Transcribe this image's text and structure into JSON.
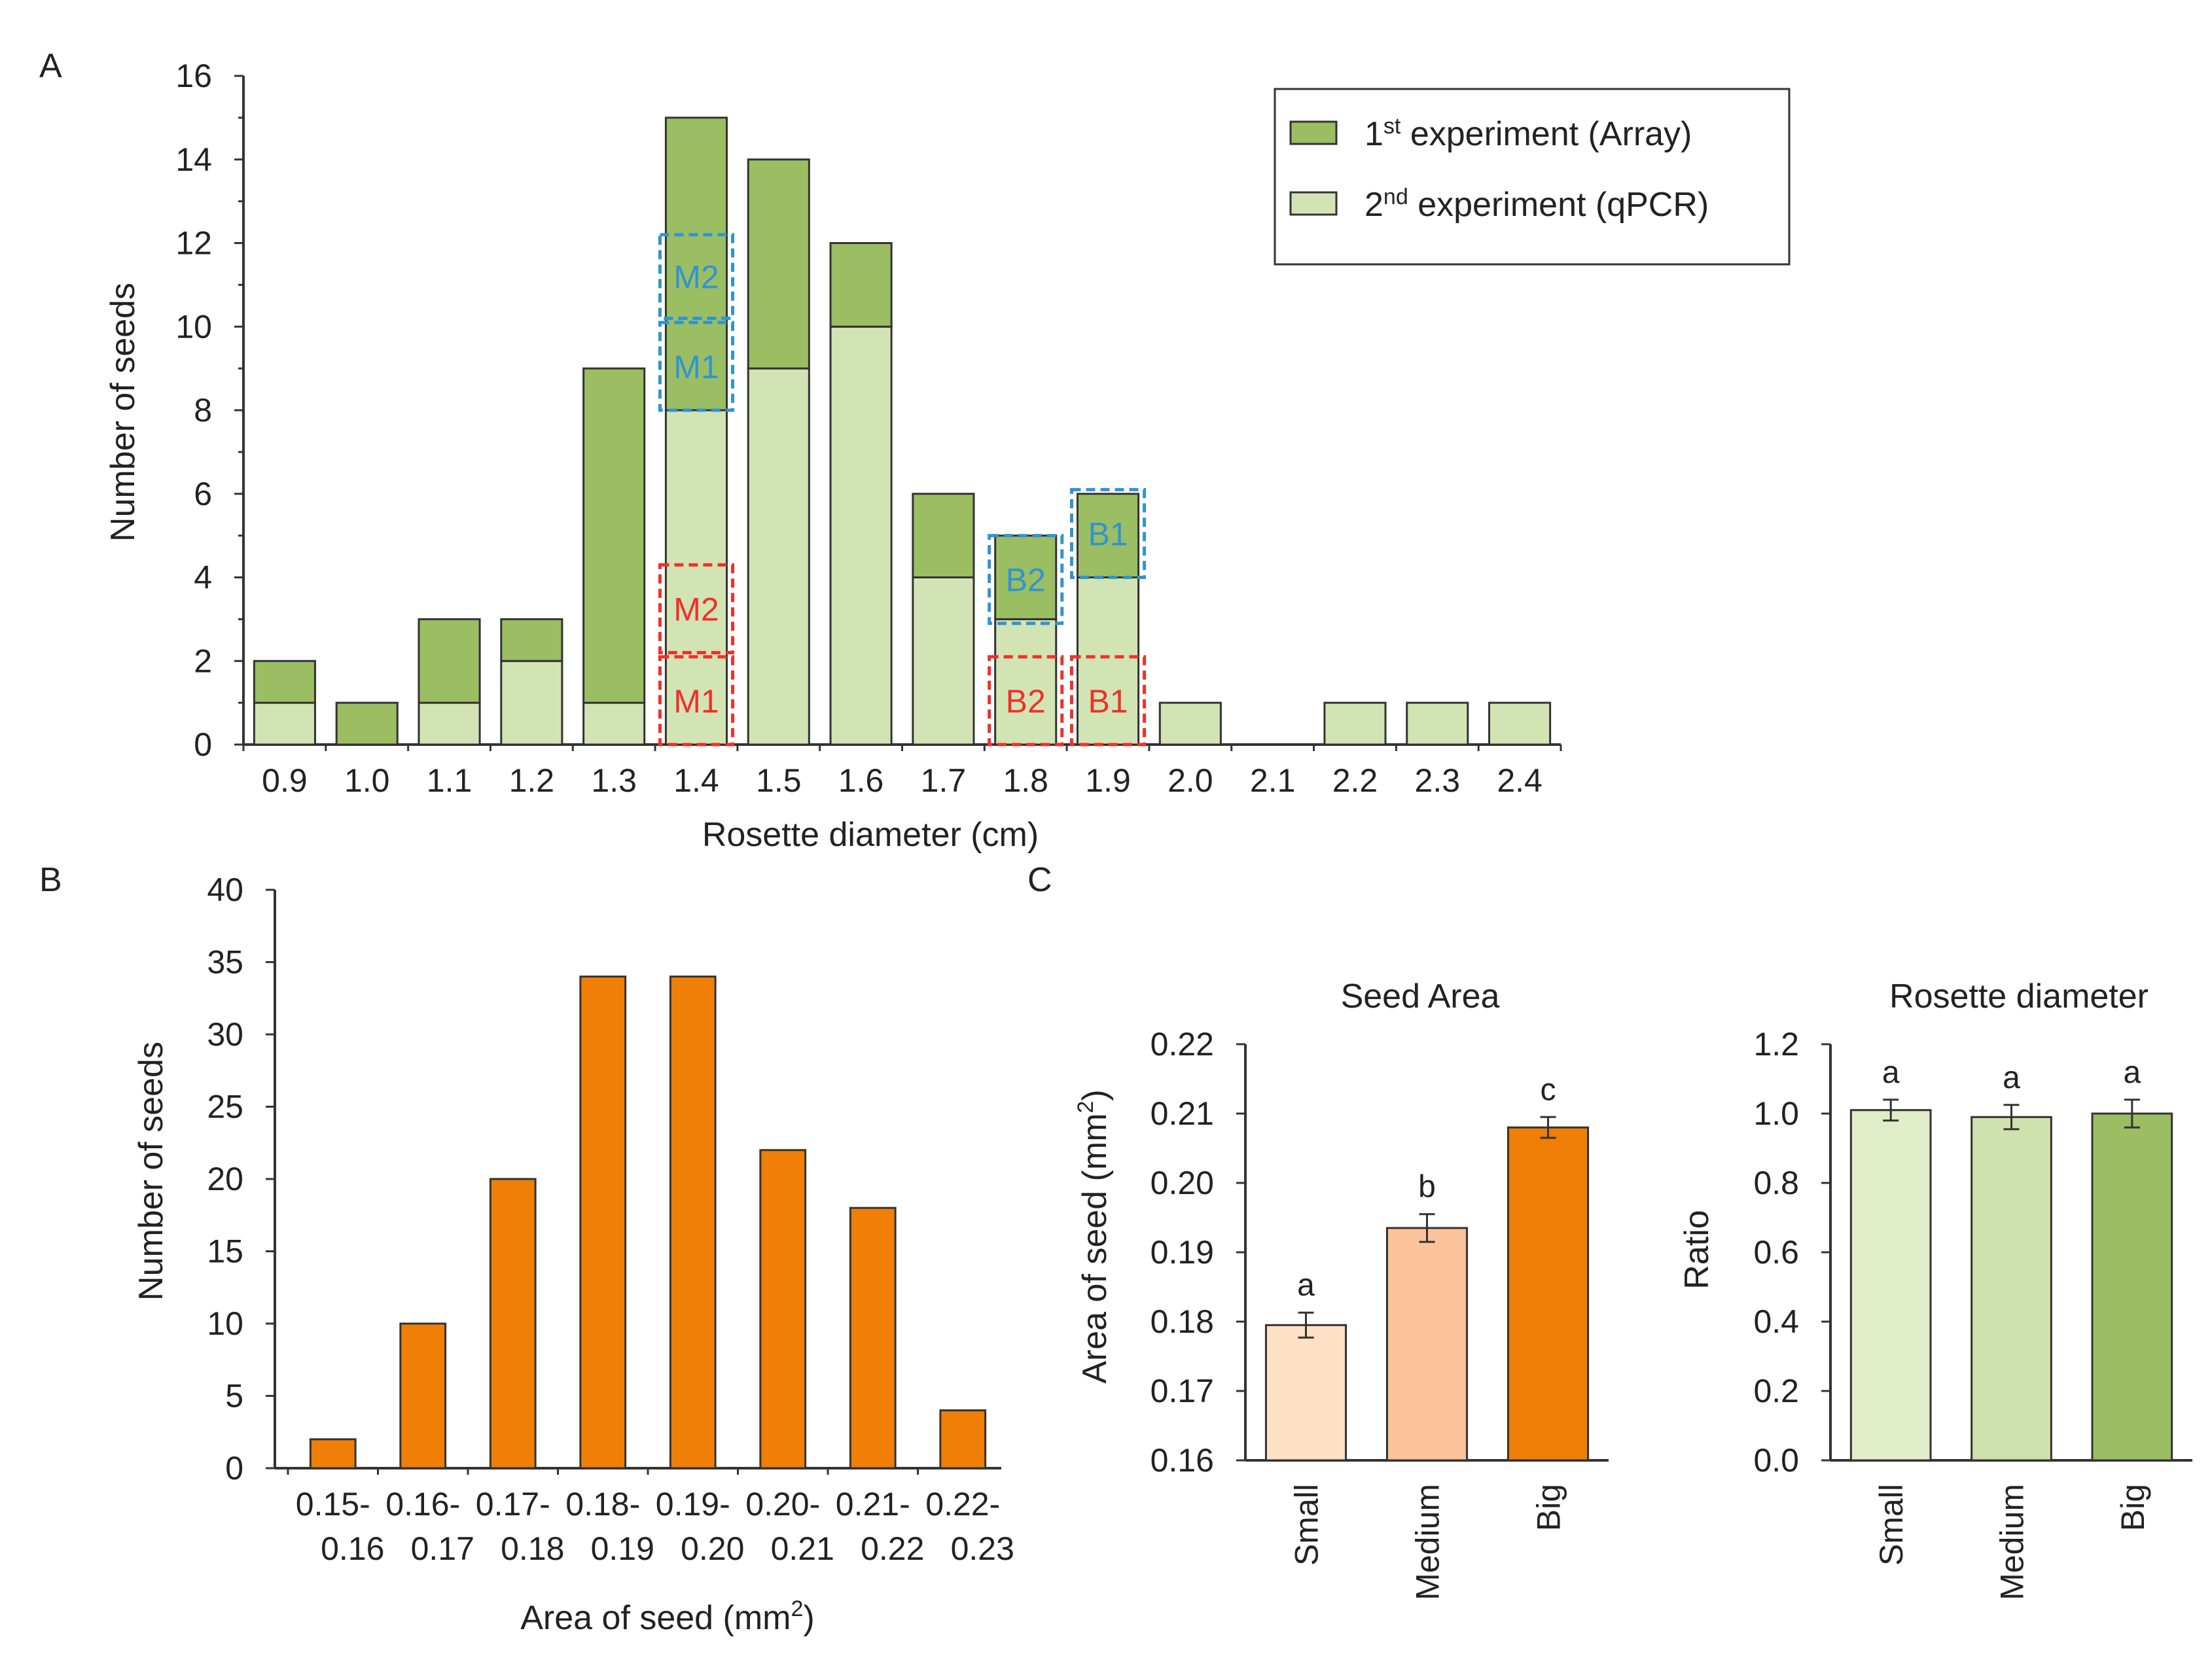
{
  "colors": {
    "dark_green": "#9bbe62",
    "light_green": "#d2e4b4",
    "orange": "#ef7f07",
    "peach_light": "#fde0c6",
    "peach_mid": "#fbc39a",
    "c_green_1": "#e1ecc9",
    "c_green_2": "#cfe1ad",
    "c_green_3": "#9bbe62",
    "blue_box": "#2f95d1",
    "red_box": "#f0302a"
  },
  "chart_data": [
    {
      "panel": "A",
      "type": "bar",
      "stacked": true,
      "xlabel": "Rosette diameter (cm)",
      "ylabel": "Number of seeds",
      "ylim": [
        0,
        16
      ],
      "yticks": [
        "0",
        "2",
        "4",
        "6",
        "8",
        "10",
        "12",
        "14",
        "16"
      ],
      "categories": [
        "0.9",
        "1.0",
        "1.1",
        "1.2",
        "1.3",
        "1.4",
        "1.5",
        "1.6",
        "1.7",
        "1.8",
        "1.9",
        "2.0",
        "2.1",
        "2.2",
        "2.3",
        "2.4"
      ],
      "series": [
        {
          "name": "2nd experiment (qPCR)",
          "values": [
            1,
            0,
            1,
            2,
            1,
            8,
            9,
            10,
            4,
            3,
            4,
            1,
            0,
            1,
            1,
            1
          ]
        },
        {
          "name": "1st experiment (Array)",
          "values": [
            1,
            1,
            2,
            1,
            8,
            7,
            5,
            2,
            2,
            2,
            2,
            0,
            0,
            0,
            0,
            0
          ]
        }
      ],
      "legend": {
        "position": "top-right",
        "items": [
          {
            "prefix": "1",
            "sup": "st",
            "rest": " experiment (Array)",
            "color_key": "dark_green"
          },
          {
            "prefix": "2",
            "sup": "nd",
            "rest": " experiment (qPCR)",
            "color_key": "light_green"
          }
        ]
      },
      "annotations": [
        {
          "label": "M2",
          "color": "blue",
          "category": "1.4",
          "y_range": [
            10.2,
            12.2
          ]
        },
        {
          "label": "M1",
          "color": "blue",
          "category": "1.4",
          "y_range": [
            8.0,
            10.1
          ]
        },
        {
          "label": "M2",
          "color": "red",
          "category": "1.4",
          "y_range": [
            2.2,
            4.3
          ]
        },
        {
          "label": "M1",
          "color": "red",
          "category": "1.4",
          "y_range": [
            0.0,
            2.1
          ]
        },
        {
          "label": "B2",
          "color": "blue",
          "category": "1.8",
          "y_range": [
            2.9,
            5.0
          ]
        },
        {
          "label": "B1",
          "color": "blue",
          "category": "1.9",
          "y_range": [
            4.0,
            6.1
          ]
        },
        {
          "label": "B2",
          "color": "red",
          "category": "1.8",
          "y_range": [
            0.0,
            2.1
          ]
        },
        {
          "label": "B1",
          "color": "red",
          "category": "1.9",
          "y_range": [
            0.0,
            2.1
          ]
        }
      ]
    },
    {
      "panel": "B",
      "type": "bar",
      "xlabel": "Area of seed (mm2)",
      "xlabel_parts": {
        "pre": "Area of seed (mm",
        "sup": "2",
        "post": ")"
      },
      "ylabel": "Number of seeds",
      "ylim": [
        0,
        40
      ],
      "yticks": [
        "0",
        "5",
        "10",
        "15",
        "20",
        "25",
        "30",
        "35",
        "40"
      ],
      "categories": [
        "0.15-0.16",
        "0.16-0.17",
        "0.17-0.18",
        "0.18-0.19",
        "0.19-0.20",
        "0.20-0.21",
        "0.21-0.22",
        "0.22-0.23"
      ],
      "category_lines": [
        [
          "0.15-",
          "0.16"
        ],
        [
          "0.16-",
          "0.17"
        ],
        [
          "0.17-",
          "0.18"
        ],
        [
          "0.18-",
          "0.19"
        ],
        [
          "0.19-",
          "0.20"
        ],
        [
          "0.20-",
          "0.21"
        ],
        [
          "0.21-",
          "0.22"
        ],
        [
          "0.22-",
          "0.23"
        ]
      ],
      "values": [
        2,
        10,
        20,
        34,
        34,
        22,
        18,
        4
      ]
    },
    {
      "panel": "C",
      "type": "bar",
      "title": "Seed Area",
      "ylabel": "Area of seed (mm2)",
      "ylabel_parts": {
        "pre": "Area of seed (mm",
        "sup": "2",
        "post": ")"
      },
      "ylim": [
        0.16,
        0.22
      ],
      "yticks": [
        "0.16",
        "0.17",
        "0.18",
        "0.19",
        "0.20",
        "0.21",
        "0.22"
      ],
      "categories": [
        "Small",
        "Medium",
        "Big"
      ],
      "values": [
        0.1795,
        0.1935,
        0.208
      ],
      "errors": [
        0.0018,
        0.002,
        0.0015
      ],
      "significance": [
        "a",
        "b",
        "c"
      ]
    },
    {
      "panel": "C",
      "type": "bar",
      "title": "Rosette diameter",
      "ylabel": "Ratio",
      "ylim": [
        0.0,
        1.2
      ],
      "yticks": [
        "0.0",
        "0.2",
        "0.4",
        "0.6",
        "0.8",
        "1.0",
        "1.2"
      ],
      "categories": [
        "Small",
        "Medium",
        "Big"
      ],
      "values": [
        1.01,
        0.99,
        1.0
      ],
      "errors": [
        0.03,
        0.035,
        0.04
      ],
      "significance": [
        "a",
        "a",
        "a"
      ]
    }
  ],
  "panel_labels": {
    "a": "A",
    "b": "B",
    "c": "C"
  }
}
